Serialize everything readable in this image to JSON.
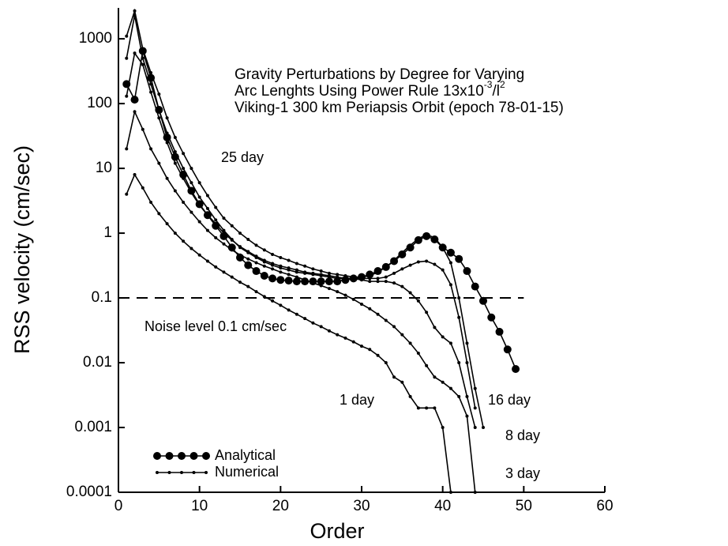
{
  "chart_data": {
    "type": "line",
    "title_lines": [
      [
        "Gravity Perturbations by Degree for Varying"
      ],
      [
        "Arc Lenghts Using Power Rule 13x10",
        "-3",
        "/l",
        "2"
      ],
      [
        "Viking-1 300 km Periapsis Orbit (epoch 78-01-15)"
      ]
    ],
    "x_label": "Order",
    "y_label": "RSS velocity (cm/sec)",
    "log_y": true,
    "xlim": [
      0,
      60
    ],
    "xticks": [
      0,
      10,
      20,
      30,
      40,
      50,
      60
    ],
    "ylim": [
      0.0001,
      3000
    ],
    "yticks": [
      0.0001,
      0.001,
      0.01,
      0.1,
      1,
      10,
      100,
      1000
    ],
    "legend": {
      "corner": "lower left",
      "entries": [
        {
          "label": "Analytical",
          "marker_size": 5
        },
        {
          "label": "Numerical",
          "marker_size": 2
        }
      ]
    },
    "hline": {
      "y": 0.1,
      "x": [
        0,
        50
      ],
      "label": "Noise level 0.1 cm/sec"
    },
    "series": [
      {
        "name": "Analytical",
        "color": "#000",
        "marker_size": 5,
        "x": [
          1,
          2,
          3,
          4,
          5,
          6,
          7,
          8,
          9,
          10,
          11,
          12,
          13,
          14,
          15,
          16,
          17,
          18,
          19,
          20,
          21,
          22,
          23,
          24,
          25,
          26,
          27,
          28,
          29,
          30,
          31,
          32,
          33,
          34,
          35,
          36,
          37,
          38,
          39,
          40,
          41,
          42,
          43,
          44,
          45,
          46,
          47,
          48,
          49
        ],
        "values": [
          200,
          115,
          650,
          250,
          80,
          30,
          15,
          8,
          4.5,
          2.8,
          1.9,
          1.3,
          0.9,
          0.6,
          0.42,
          0.32,
          0.26,
          0.22,
          0.2,
          0.19,
          0.185,
          0.18,
          0.18,
          0.18,
          0.18,
          0.18,
          0.18,
          0.19,
          0.2,
          0.21,
          0.23,
          0.26,
          0.3,
          0.37,
          0.47,
          0.6,
          0.78,
          0.9,
          0.8,
          0.6,
          0.5,
          0.4,
          0.26,
          0.15,
          0.09,
          0.05,
          0.03,
          0.016,
          0.008
        ]
      },
      {
        "name": "25 day",
        "color": "#000",
        "marker_size": 2,
        "x": [
          1,
          2,
          3,
          4,
          5,
          6,
          7,
          8,
          9,
          10,
          11,
          12,
          13,
          14,
          15,
          16,
          17,
          18,
          19,
          20,
          21,
          22,
          23,
          24,
          25,
          26,
          27,
          28,
          29,
          30,
          31,
          32,
          33,
          34,
          35,
          36,
          37,
          38,
          39,
          40,
          41,
          42,
          43,
          44,
          45
        ],
        "values": [
          1100,
          2700,
          700,
          300,
          140,
          60,
          30,
          17,
          10,
          6,
          3.8,
          2.5,
          1.7,
          1.3,
          1.0,
          0.8,
          0.65,
          0.55,
          0.47,
          0.42,
          0.38,
          0.34,
          0.31,
          0.28,
          0.26,
          0.24,
          0.23,
          0.22,
          0.21,
          0.21,
          0.22,
          0.25,
          0.3,
          0.38,
          0.5,
          0.65,
          0.82,
          0.95,
          0.85,
          0.6,
          0.35,
          0.1,
          0.02,
          0.004,
          0.001
        ]
      },
      {
        "name": "16 day",
        "color": "#000",
        "marker_size": 2,
        "x": [
          1,
          2,
          3,
          4,
          5,
          6,
          7,
          8,
          9,
          10,
          11,
          12,
          13,
          14,
          15,
          16,
          17,
          18,
          19,
          20,
          21,
          22,
          23,
          24,
          25,
          26,
          27,
          28,
          29,
          30,
          31,
          32,
          33,
          34,
          35,
          36,
          37,
          38,
          39,
          40,
          41,
          42,
          43,
          44
        ],
        "values": [
          500,
          2300,
          500,
          200,
          80,
          35,
          18,
          10,
          6,
          3.6,
          2.4,
          1.6,
          1.1,
          0.8,
          0.6,
          0.5,
          0.42,
          0.36,
          0.32,
          0.29,
          0.27,
          0.25,
          0.24,
          0.23,
          0.22,
          0.21,
          0.2,
          0.2,
          0.2,
          0.2,
          0.2,
          0.2,
          0.21,
          0.24,
          0.28,
          0.32,
          0.36,
          0.37,
          0.33,
          0.27,
          0.16,
          0.05,
          0.01,
          0.002
        ]
      },
      {
        "name": "8 day",
        "color": "#000",
        "marker_size": 2,
        "x": [
          1,
          2,
          3,
          4,
          5,
          6,
          7,
          8,
          9,
          10,
          11,
          12,
          13,
          14,
          15,
          16,
          17,
          18,
          19,
          20,
          21,
          22,
          23,
          24,
          25,
          26,
          27,
          28,
          29,
          30,
          31,
          32,
          33,
          34,
          35,
          36,
          37,
          38,
          39,
          40,
          41,
          42,
          43,
          44
        ],
        "values": [
          130,
          600,
          400,
          150,
          60,
          25,
          12,
          7,
          4.2,
          2.7,
          1.9,
          1.4,
          1.0,
          0.78,
          0.62,
          0.52,
          0.44,
          0.38,
          0.34,
          0.31,
          0.29,
          0.27,
          0.25,
          0.24,
          0.23,
          0.22,
          0.21,
          0.2,
          0.2,
          0.19,
          0.18,
          0.18,
          0.18,
          0.17,
          0.15,
          0.12,
          0.09,
          0.06,
          0.035,
          0.025,
          0.02,
          0.01,
          0.003,
          0.001
        ]
      },
      {
        "name": "3 day",
        "color": "#000",
        "marker_size": 2,
        "x": [
          1,
          2,
          3,
          4,
          5,
          6,
          7,
          8,
          9,
          10,
          11,
          12,
          13,
          14,
          15,
          16,
          17,
          18,
          19,
          20,
          21,
          22,
          23,
          24,
          25,
          26,
          27,
          28,
          29,
          30,
          31,
          32,
          33,
          34,
          35,
          36,
          37,
          38,
          39,
          40,
          41,
          42,
          43,
          44
        ],
        "values": [
          20,
          75,
          40,
          20,
          12,
          7,
          4.5,
          3,
          2.1,
          1.5,
          1.1,
          0.85,
          0.68,
          0.55,
          0.46,
          0.4,
          0.35,
          0.31,
          0.28,
          0.25,
          0.23,
          0.21,
          0.19,
          0.17,
          0.155,
          0.14,
          0.125,
          0.11,
          0.095,
          0.08,
          0.068,
          0.056,
          0.045,
          0.036,
          0.027,
          0.02,
          0.014,
          0.009,
          0.006,
          0.005,
          0.004,
          0.003,
          0.0015,
          0.0001
        ]
      },
      {
        "name": "1 day",
        "color": "#000",
        "marker_size": 2,
        "x": [
          1,
          2,
          3,
          4,
          5,
          6,
          7,
          8,
          9,
          10,
          11,
          12,
          13,
          14,
          15,
          16,
          17,
          18,
          19,
          20,
          21,
          22,
          23,
          24,
          25,
          26,
          27,
          28,
          29,
          30,
          31,
          32,
          33,
          34,
          35,
          36,
          37,
          38,
          39,
          40,
          41
        ],
        "values": [
          4,
          8,
          5,
          3,
          2,
          1.4,
          1.0,
          0.75,
          0.58,
          0.46,
          0.37,
          0.3,
          0.25,
          0.21,
          0.175,
          0.15,
          0.125,
          0.105,
          0.09,
          0.077,
          0.065,
          0.056,
          0.048,
          0.041,
          0.036,
          0.031,
          0.027,
          0.024,
          0.021,
          0.018,
          0.016,
          0.013,
          0.01,
          0.006,
          0.005,
          0.003,
          0.002,
          0.002,
          0.002,
          0.001,
          0.0001
        ]
      }
    ]
  }
}
